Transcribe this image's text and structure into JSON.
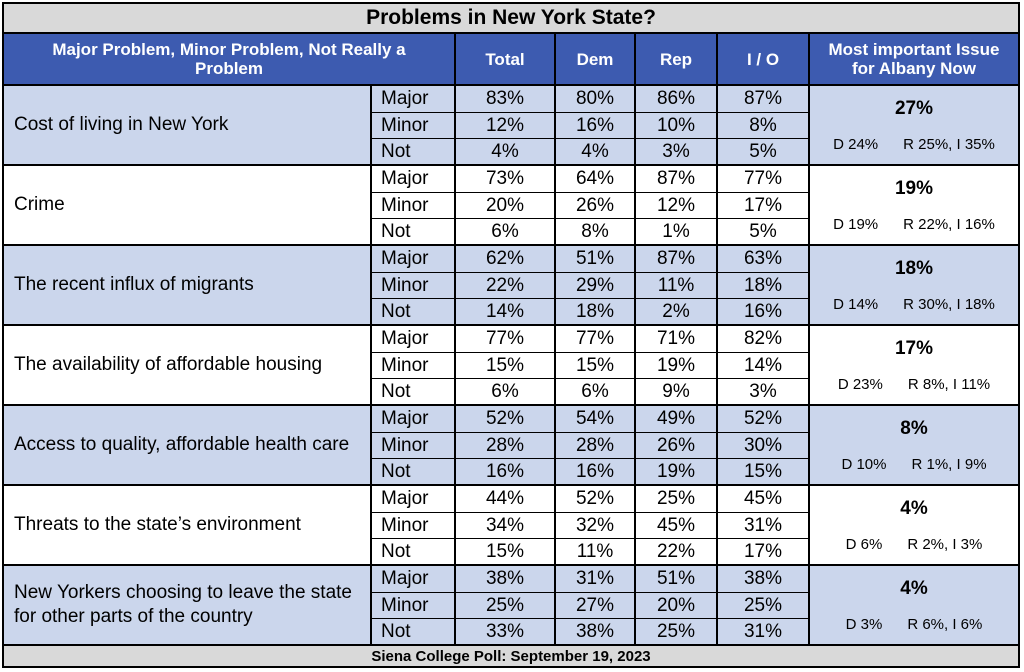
{
  "title": "Problems in New York State?",
  "header": {
    "label_col": "Major Problem, Minor Problem, Not Really a Problem",
    "columns": [
      "Total",
      "Dem",
      "Rep",
      "I / O"
    ],
    "issue_col": "Most important Issue for Albany Now"
  },
  "footer": "Siena College Poll: September 19, 2023",
  "colors": {
    "header_bg": "#3d5bb0",
    "band_blue": "#cbd6ec",
    "band_white": "#ffffff",
    "frame_gray": "#d9d9d9"
  },
  "chart_data": {
    "type": "table",
    "title": "Problems in New York State?",
    "levels": [
      "Major",
      "Minor",
      "Not"
    ],
    "columns": [
      "Total",
      "Dem",
      "Rep",
      "I / O"
    ],
    "rows": [
      {
        "item": "Cost of living in New York",
        "values": [
          [
            "83%",
            "80%",
            "86%",
            "87%"
          ],
          [
            "12%",
            "16%",
            "10%",
            "8%"
          ],
          [
            "4%",
            "4%",
            "3%",
            "5%"
          ]
        ],
        "issue_pct": "27%",
        "issue_split": "D 24%      R 25%, I 35%"
      },
      {
        "item": "Crime",
        "values": [
          [
            "73%",
            "64%",
            "87%",
            "77%"
          ],
          [
            "20%",
            "26%",
            "12%",
            "17%"
          ],
          [
            "6%",
            "8%",
            "1%",
            "5%"
          ]
        ],
        "issue_pct": "19%",
        "issue_split": "D 19%      R 22%, I 16%"
      },
      {
        "item": "The recent influx of migrants",
        "values": [
          [
            "62%",
            "51%",
            "87%",
            "63%"
          ],
          [
            "22%",
            "29%",
            "11%",
            "18%"
          ],
          [
            "14%",
            "18%",
            "2%",
            "16%"
          ]
        ],
        "issue_pct": "18%",
        "issue_split": "D 14%      R 30%, I 18%"
      },
      {
        "item": "The availability of affordable housing",
        "values": [
          [
            "77%",
            "77%",
            "71%",
            "82%"
          ],
          [
            "15%",
            "15%",
            "19%",
            "14%"
          ],
          [
            "6%",
            "6%",
            "9%",
            "3%"
          ]
        ],
        "issue_pct": "17%",
        "issue_split": "D 23%      R 8%, I 11%"
      },
      {
        "item": "Access to quality, affordable health care",
        "values": [
          [
            "52%",
            "54%",
            "49%",
            "52%"
          ],
          [
            "28%",
            "28%",
            "26%",
            "30%"
          ],
          [
            "16%",
            "16%",
            "19%",
            "15%"
          ]
        ],
        "issue_pct": "8%",
        "issue_split": "D 10%      R 1%, I 9%"
      },
      {
        "item": "Threats to the state’s environment",
        "values": [
          [
            "44%",
            "52%",
            "25%",
            "45%"
          ],
          [
            "34%",
            "32%",
            "45%",
            "31%"
          ],
          [
            "15%",
            "11%",
            "22%",
            "17%"
          ]
        ],
        "issue_pct": "4%",
        "issue_split": "D 6%      R 2%, I 3%"
      },
      {
        "item": "New Yorkers choosing to leave the state for other parts of the country",
        "values": [
          [
            "38%",
            "31%",
            "51%",
            "38%"
          ],
          [
            "25%",
            "27%",
            "20%",
            "25%"
          ],
          [
            "33%",
            "38%",
            "25%",
            "31%"
          ]
        ],
        "issue_pct": "4%",
        "issue_split": "D 3%      R 6%, I 6%"
      }
    ]
  }
}
